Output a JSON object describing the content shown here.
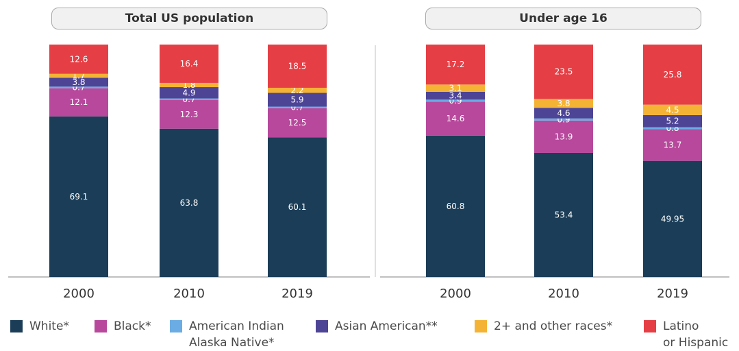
{
  "chart_data": [
    {
      "type": "bar",
      "stacked": true,
      "title": "Total US population",
      "categories": [
        "2000",
        "2010",
        "2019"
      ],
      "ylim": [
        0,
        100
      ],
      "series": [
        {
          "name": "White*",
          "values": [
            69.1,
            63.8,
            60.1
          ],
          "labels": [
            "69.1",
            "63.8",
            "60.1"
          ]
        },
        {
          "name": "Black*",
          "values": [
            12.1,
            12.3,
            12.5
          ],
          "labels": [
            "12.1",
            "12.3",
            "12.5"
          ]
        },
        {
          "name": "American Indian Alaska Native*",
          "values": [
            0.7,
            0.7,
            0.7
          ],
          "labels": [
            "0.7",
            "0.7",
            "0.7"
          ]
        },
        {
          "name": "Asian American**",
          "values": [
            3.8,
            4.9,
            5.9
          ],
          "labels": [
            "3.8",
            "4.9",
            "5.9"
          ]
        },
        {
          "name": "2+ and other races*",
          "values": [
            1.7,
            1.8,
            2.2
          ],
          "labels": [
            "1.7",
            "1.8",
            "2.2"
          ]
        },
        {
          "name": "Latino or Hispanic",
          "values": [
            12.6,
            16.4,
            18.5
          ],
          "labels": [
            "12.6",
            "16.4",
            "18.5"
          ]
        }
      ]
    },
    {
      "type": "bar",
      "stacked": true,
      "title": "Under age 16",
      "categories": [
        "2000",
        "2010",
        "2019"
      ],
      "ylim": [
        0,
        100
      ],
      "series": [
        {
          "name": "White*",
          "values": [
            60.8,
            53.4,
            49.95
          ],
          "labels": [
            "60.8",
            "53.4",
            "49.95"
          ]
        },
        {
          "name": "Black*",
          "values": [
            14.6,
            13.9,
            13.7
          ],
          "labels": [
            "14.6",
            "13.9",
            "13.7"
          ]
        },
        {
          "name": "American Indian Alaska Native*",
          "values": [
            0.9,
            0.9,
            0.8
          ],
          "labels": [
            "0.9",
            "0.9",
            "0.8"
          ]
        },
        {
          "name": "Asian American**",
          "values": [
            3.4,
            4.6,
            5.2
          ],
          "labels": [
            "3.4",
            "4.6",
            "5.2"
          ]
        },
        {
          "name": "2+ and other races*",
          "values": [
            3.1,
            3.8,
            4.5
          ],
          "labels": [
            "3.1",
            "3.8",
            "4.5"
          ]
        },
        {
          "name": "Latino or Hispanic",
          "values": [
            17.2,
            23.5,
            25.8
          ],
          "labels": [
            "17.2",
            "23.5",
            "25.8"
          ]
        }
      ]
    }
  ],
  "legend": [
    {
      "line1": "White*",
      "line2": "",
      "color": "#1b3d57"
    },
    {
      "line1": "Black*",
      "line2": "",
      "color": "#b7489c"
    },
    {
      "line1": "American Indian",
      "line2": "Alaska Native*",
      "color": "#6aace3"
    },
    {
      "line1": "Asian American**",
      "line2": "",
      "color": "#4e4496"
    },
    {
      "line1": "2+ and other races*",
      "line2": "",
      "color": "#f5b335"
    },
    {
      "line1": "Latino",
      "line2": "or Hispanic",
      "color": "#e63e45"
    }
  ],
  "colors": {
    "white": "#1b3d57",
    "black": "#b7489c",
    "american_indian": "#6aace3",
    "asian": "#4e4496",
    "other": "#f5b335",
    "latino": "#e63e45",
    "axis": "#9a9a9a",
    "tick_label": "#333333"
  }
}
